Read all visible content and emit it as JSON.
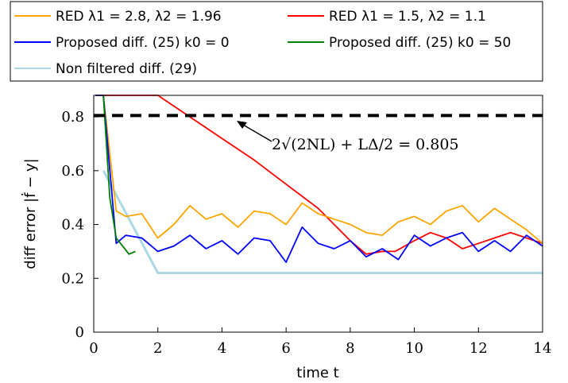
{
  "chart_data": {
    "type": "line",
    "xlabel": "time t",
    "ylabel": "diff error |ḟ − y|",
    "xlim": [
      0,
      14
    ],
    "ylim": [
      0,
      0.88
    ],
    "xticks": [
      "0",
      "2",
      "4",
      "6",
      "8",
      "10",
      "12",
      "14"
    ],
    "yticks": [
      "0",
      "0.2",
      "0.4",
      "0.6",
      "0.8"
    ],
    "grid": false,
    "legend_position": "top (outside plot)",
    "legend": [
      {
        "label": "RED λ1 = 2.8, λ2 = 1.96",
        "color": "#ffa500"
      },
      {
        "label": "RED λ1 = 1.5, λ2 = 1.1",
        "color": "#ff0000"
      },
      {
        "label": "Proposed diff. (25) k0 = 0",
        "color": "#0000ff"
      },
      {
        "label": "Proposed diff. (25) k0 = 50",
        "color": "#008000"
      },
      {
        "label": "Non filtered diff. (29)",
        "color": "#add8e6"
      }
    ],
    "reference_line": {
      "y": 0.805,
      "style": "dashed",
      "color": "#000000"
    },
    "annotation": "2√(2NL) + LΔ/2 = 0.805",
    "series": [
      {
        "name": "Non filtered diff. (29)",
        "color": "#add8e6",
        "x": [
          0.3,
          2,
          4,
          6,
          8,
          10,
          12,
          14
        ],
        "y": [
          0.6,
          0.22,
          0.22,
          0.22,
          0.22,
          0.22,
          0.22,
          0.22
        ]
      },
      {
        "name": "RED λ1 = 1.5, λ2 = 1.1",
        "color": "#ff0000",
        "x": [
          0.3,
          1,
          2,
          3,
          4,
          5,
          6,
          7,
          8,
          8.5,
          9,
          9.4,
          10,
          10.5,
          11,
          11.5,
          12,
          12.5,
          13,
          13.5,
          14
        ],
        "y": [
          0.88,
          0.88,
          0.88,
          0.8,
          0.72,
          0.64,
          0.55,
          0.46,
          0.34,
          0.29,
          0.3,
          0.3,
          0.34,
          0.37,
          0.35,
          0.31,
          0.33,
          0.35,
          0.37,
          0.35,
          0.33
        ]
      },
      {
        "name": "RED λ1 = 2.8, λ2 = 1.96",
        "color": "#ffa500",
        "x": [
          0.05,
          0.3,
          0.7,
          1,
          1.5,
          2,
          2.5,
          3,
          3.5,
          4,
          4.5,
          5,
          5.5,
          6,
          6.5,
          7,
          7.5,
          8,
          8.5,
          9,
          9.5,
          10,
          10.5,
          11,
          11.5,
          12,
          12.5,
          13,
          13.5,
          14
        ],
        "y": [
          0.88,
          0.88,
          0.45,
          0.43,
          0.44,
          0.35,
          0.4,
          0.47,
          0.42,
          0.44,
          0.39,
          0.45,
          0.44,
          0.4,
          0.48,
          0.44,
          0.42,
          0.4,
          0.37,
          0.36,
          0.41,
          0.43,
          0.4,
          0.45,
          0.47,
          0.41,
          0.46,
          0.42,
          0.38,
          0.33
        ]
      },
      {
        "name": "Proposed diff. (25) k0 = 0",
        "color": "#0000ff",
        "x": [
          0.05,
          0.3,
          0.7,
          1,
          1.5,
          2,
          2.5,
          3,
          3.5,
          4,
          4.5,
          5,
          5.5,
          6,
          6.5,
          7,
          7.5,
          8,
          8.5,
          9,
          9.5,
          10,
          10.5,
          11,
          11.5,
          12,
          12.5,
          13,
          13.5,
          14
        ],
        "y": [
          0.88,
          0.88,
          0.33,
          0.36,
          0.35,
          0.3,
          0.32,
          0.36,
          0.31,
          0.34,
          0.29,
          0.35,
          0.34,
          0.26,
          0.39,
          0.33,
          0.31,
          0.34,
          0.28,
          0.31,
          0.27,
          0.36,
          0.32,
          0.35,
          0.37,
          0.3,
          0.34,
          0.3,
          0.36,
          0.32
        ]
      },
      {
        "name": "Proposed diff. (25) k0 = 50",
        "color": "#008000",
        "x": [
          0.3,
          0.5,
          0.7,
          0.9,
          1.1,
          1.3
        ],
        "y": [
          0.88,
          0.5,
          0.35,
          0.32,
          0.29,
          0.3
        ]
      }
    ]
  }
}
